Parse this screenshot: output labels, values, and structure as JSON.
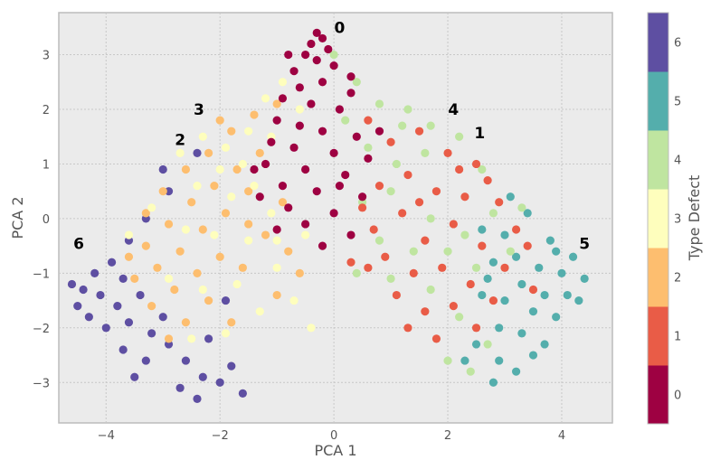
{
  "chart_data": {
    "type": "scatter",
    "title": "",
    "xlabel": "PCA 1",
    "ylabel": "PCA 2",
    "xlim": [
      -4.83,
      4.89
    ],
    "ylim": [
      -3.74,
      3.77
    ],
    "xticks": [
      -4,
      -2,
      0,
      2,
      4
    ],
    "yticks": [
      -3,
      -2,
      -1,
      0,
      1,
      2,
      3
    ],
    "grid": true,
    "colorbar": {
      "label": "Type Defect",
      "ticks": [
        0,
        1,
        2,
        3,
        4,
        5,
        6
      ],
      "colors": [
        "#9e0142",
        "#e95c47",
        "#fdbe6f",
        "#fefebd",
        "#bfe5a0",
        "#54aeac",
        "#5e4fa2"
      ]
    },
    "annotations": [
      {
        "text": "0",
        "x": 0.1,
        "y": 3.5
      },
      {
        "text": "3",
        "x": -2.37,
        "y": 2.0
      },
      {
        "text": "2",
        "x": -2.7,
        "y": 1.45
      },
      {
        "text": "4",
        "x": 2.1,
        "y": 2.0
      },
      {
        "text": "1",
        "x": 2.56,
        "y": 1.57
      },
      {
        "text": "6",
        "x": -4.48,
        "y": -0.46
      },
      {
        "text": "5",
        "x": 4.4,
        "y": -0.46
      }
    ],
    "series": [
      {
        "class": 6,
        "points": [
          [
            -2.9,
            0.5
          ],
          [
            -3.3,
            0.0
          ],
          [
            -3.6,
            -0.4
          ],
          [
            -3.9,
            -0.8
          ],
          [
            -4.2,
            -1.0
          ],
          [
            -4.4,
            -1.3
          ],
          [
            -4.5,
            -1.6
          ],
          [
            -4.1,
            -1.4
          ],
          [
            -3.7,
            -1.1
          ],
          [
            -3.8,
            -1.6
          ],
          [
            -4.3,
            -1.8
          ],
          [
            -4.0,
            -2.0
          ],
          [
            -3.6,
            -1.9
          ],
          [
            -3.4,
            -1.4
          ],
          [
            -3.2,
            -2.1
          ],
          [
            -3.7,
            -2.4
          ],
          [
            -3.3,
            -2.6
          ],
          [
            -2.9,
            -2.3
          ],
          [
            -2.6,
            -2.6
          ],
          [
            -2.3,
            -2.9
          ],
          [
            -2.7,
            -3.1
          ],
          [
            -2.4,
            -3.3
          ],
          [
            -2.0,
            -3.0
          ],
          [
            -1.8,
            -2.7
          ],
          [
            -1.6,
            -3.2
          ],
          [
            -2.2,
            -2.2
          ],
          [
            -3.0,
            -1.8
          ],
          [
            -3.0,
            0.9
          ],
          [
            -2.4,
            1.2
          ],
          [
            -4.6,
            -1.2
          ],
          [
            -3.5,
            -2.9
          ],
          [
            -1.9,
            -1.5
          ]
        ]
      },
      {
        "class": 5,
        "points": [
          [
            2.6,
            -0.2
          ],
          [
            3.0,
            -0.3
          ],
          [
            3.4,
            0.1
          ],
          [
            3.8,
            -0.4
          ],
          [
            4.2,
            -0.7
          ],
          [
            4.4,
            -1.1
          ],
          [
            3.2,
            -0.7
          ],
          [
            3.6,
            -0.9
          ],
          [
            4.0,
            -1.0
          ],
          [
            2.8,
            -0.8
          ],
          [
            3.3,
            -1.2
          ],
          [
            3.7,
            -1.4
          ],
          [
            4.1,
            -1.4
          ],
          [
            3.0,
            -1.5
          ],
          [
            3.5,
            -1.7
          ],
          [
            3.9,
            -1.8
          ],
          [
            2.6,
            -1.4
          ],
          [
            2.9,
            -2.0
          ],
          [
            3.3,
            -2.1
          ],
          [
            3.7,
            -2.3
          ],
          [
            2.5,
            -2.3
          ],
          [
            2.9,
            -2.6
          ],
          [
            3.2,
            -2.8
          ],
          [
            2.8,
            -3.0
          ],
          [
            2.3,
            -2.6
          ],
          [
            3.9,
            -0.6
          ],
          [
            4.3,
            -1.5
          ],
          [
            3.1,
            0.4
          ],
          [
            3.5,
            -2.5
          ],
          [
            2.7,
            -1.1
          ]
        ]
      },
      {
        "class": 2,
        "points": [
          [
            -1.0,
            2.1
          ],
          [
            -1.4,
            1.9
          ],
          [
            -1.8,
            1.6
          ],
          [
            -2.2,
            1.2
          ],
          [
            -2.6,
            0.9
          ],
          [
            -3.0,
            0.5
          ],
          [
            -3.3,
            0.1
          ],
          [
            -1.3,
            1.2
          ],
          [
            -1.7,
            0.9
          ],
          [
            -2.1,
            0.6
          ],
          [
            -2.5,
            0.3
          ],
          [
            -2.9,
            -0.1
          ],
          [
            -3.3,
            -0.5
          ],
          [
            -3.6,
            -0.7
          ],
          [
            -1.5,
            0.5
          ],
          [
            -1.9,
            0.1
          ],
          [
            -2.3,
            -0.2
          ],
          [
            -2.7,
            -0.6
          ],
          [
            -3.1,
            -0.9
          ],
          [
            -3.5,
            -1.1
          ],
          [
            -2.0,
            -0.7
          ],
          [
            -2.4,
            -1.0
          ],
          [
            -2.8,
            -1.3
          ],
          [
            -3.2,
            -1.6
          ],
          [
            -1.2,
            -0.3
          ],
          [
            -1.6,
            -0.9
          ],
          [
            -2.2,
            -1.5
          ],
          [
            -2.6,
            -1.9
          ],
          [
            -0.8,
            -0.6
          ],
          [
            -0.6,
            -1.0
          ],
          [
            -1.0,
            -1.4
          ],
          [
            -1.8,
            -1.9
          ],
          [
            -2.0,
            1.8
          ],
          [
            -1.5,
            -0.1
          ],
          [
            -2.9,
            -2.2
          ],
          [
            -0.9,
            0.3
          ]
        ]
      },
      {
        "class": 3,
        "points": [
          [
            -0.9,
            2.5
          ],
          [
            -1.2,
            2.2
          ],
          [
            -0.6,
            2.0
          ],
          [
            -1.5,
            1.6
          ],
          [
            -1.1,
            1.5
          ],
          [
            -1.9,
            1.3
          ],
          [
            -2.3,
            1.5
          ],
          [
            -1.6,
            1.0
          ],
          [
            -2.0,
            0.9
          ],
          [
            -2.7,
            1.2
          ],
          [
            -1.4,
            0.6
          ],
          [
            -1.8,
            0.4
          ],
          [
            -2.4,
            0.6
          ],
          [
            -3.2,
            0.2
          ],
          [
            -1.1,
            0.1
          ],
          [
            -1.5,
            -0.4
          ],
          [
            -2.1,
            -0.3
          ],
          [
            -2.6,
            -0.2
          ],
          [
            -1.0,
            -0.9
          ],
          [
            -1.7,
            -1.2
          ],
          [
            -2.3,
            -1.3
          ],
          [
            -2.9,
            -1.1
          ],
          [
            -0.7,
            -1.5
          ],
          [
            -1.3,
            -1.7
          ],
          [
            -1.9,
            -2.1
          ],
          [
            -0.5,
            -0.3
          ],
          [
            -3.6,
            -0.3
          ],
          [
            -2.5,
            -2.2
          ],
          [
            -0.4,
            -2.0
          ],
          [
            -1.0,
            -0.4
          ]
        ]
      },
      {
        "class": 4,
        "points": [
          [
            0.0,
            3.0
          ],
          [
            0.4,
            2.5
          ],
          [
            0.8,
            2.1
          ],
          [
            1.3,
            2.0
          ],
          [
            1.7,
            1.7
          ],
          [
            0.6,
            1.3
          ],
          [
            1.1,
            1.0
          ],
          [
            1.6,
            1.2
          ],
          [
            2.2,
            1.5
          ],
          [
            2.6,
            0.9
          ],
          [
            0.5,
            0.3
          ],
          [
            1.0,
            0.5
          ],
          [
            1.7,
            0.0
          ],
          [
            2.3,
            -0.3
          ],
          [
            2.8,
            0.1
          ],
          [
            3.1,
            -0.6
          ],
          [
            0.8,
            -0.4
          ],
          [
            1.4,
            -0.6
          ],
          [
            2.0,
            -0.6
          ],
          [
            2.5,
            -0.9
          ],
          [
            1.0,
            -1.1
          ],
          [
            1.7,
            -1.3
          ],
          [
            2.2,
            -1.8
          ],
          [
            2.7,
            -2.3
          ],
          [
            2.0,
            -2.6
          ],
          [
            2.4,
            -2.8
          ],
          [
            0.4,
            -1.0
          ],
          [
            3.3,
            0.2
          ],
          [
            1.2,
            1.7
          ],
          [
            0.2,
            1.8
          ]
        ]
      },
      {
        "class": 1,
        "points": [
          [
            0.6,
            1.8
          ],
          [
            1.0,
            1.4
          ],
          [
            1.5,
            1.6
          ],
          [
            2.0,
            1.2
          ],
          [
            2.5,
            1.0
          ],
          [
            0.8,
            0.6
          ],
          [
            1.3,
            0.8
          ],
          [
            1.8,
            0.5
          ],
          [
            2.3,
            0.4
          ],
          [
            2.9,
            0.3
          ],
          [
            3.2,
            -0.2
          ],
          [
            0.7,
            -0.2
          ],
          [
            1.2,
            0.1
          ],
          [
            1.6,
            -0.4
          ],
          [
            2.1,
            -0.1
          ],
          [
            2.6,
            -0.5
          ],
          [
            3.0,
            -0.9
          ],
          [
            0.9,
            -0.7
          ],
          [
            1.4,
            -1.0
          ],
          [
            1.9,
            -0.9
          ],
          [
            2.4,
            -1.2
          ],
          [
            2.8,
            -1.5
          ],
          [
            1.1,
            -1.4
          ],
          [
            1.6,
            -1.7
          ],
          [
            2.1,
            -1.6
          ],
          [
            2.5,
            -2.0
          ],
          [
            1.8,
            -2.2
          ],
          [
            0.6,
            -0.9
          ],
          [
            3.4,
            -0.5
          ],
          [
            2.2,
            0.9
          ],
          [
            1.5,
            0.3
          ],
          [
            0.5,
            0.2
          ],
          [
            2.7,
            0.7
          ],
          [
            3.5,
            -1.3
          ],
          [
            1.3,
            -2.0
          ],
          [
            0.3,
            -0.8
          ]
        ]
      },
      {
        "class": 0,
        "points": [
          [
            -0.3,
            3.4
          ],
          [
            -0.2,
            3.3
          ],
          [
            -0.4,
            3.2
          ],
          [
            -0.1,
            3.1
          ],
          [
            -0.5,
            3.0
          ],
          [
            -0.3,
            2.9
          ],
          [
            -0.7,
            2.7
          ],
          [
            0.0,
            2.8
          ],
          [
            -0.6,
            2.4
          ],
          [
            -0.2,
            2.5
          ],
          [
            0.3,
            2.3
          ],
          [
            -0.9,
            2.2
          ],
          [
            -0.4,
            2.1
          ],
          [
            0.1,
            2.0
          ],
          [
            -1.0,
            1.8
          ],
          [
            -0.6,
            1.7
          ],
          [
            -0.2,
            1.6
          ],
          [
            0.4,
            1.5
          ],
          [
            -1.1,
            1.4
          ],
          [
            -0.7,
            1.3
          ],
          [
            0.0,
            1.2
          ],
          [
            0.6,
            1.1
          ],
          [
            -1.2,
            1.0
          ],
          [
            -0.5,
            0.9
          ],
          [
            0.2,
            0.8
          ],
          [
            -0.9,
            0.6
          ],
          [
            -0.3,
            0.5
          ],
          [
            0.5,
            0.4
          ],
          [
            -1.3,
            0.4
          ],
          [
            -0.8,
            0.2
          ],
          [
            0.0,
            0.1
          ],
          [
            -0.5,
            -0.1
          ],
          [
            -1.0,
            -0.2
          ],
          [
            0.3,
            -0.3
          ],
          [
            -0.2,
            -0.5
          ],
          [
            -1.4,
            0.9
          ],
          [
            0.8,
            1.6
          ],
          [
            0.3,
            2.6
          ],
          [
            -0.8,
            3.0
          ],
          [
            0.1,
            0.6
          ]
        ]
      }
    ]
  }
}
